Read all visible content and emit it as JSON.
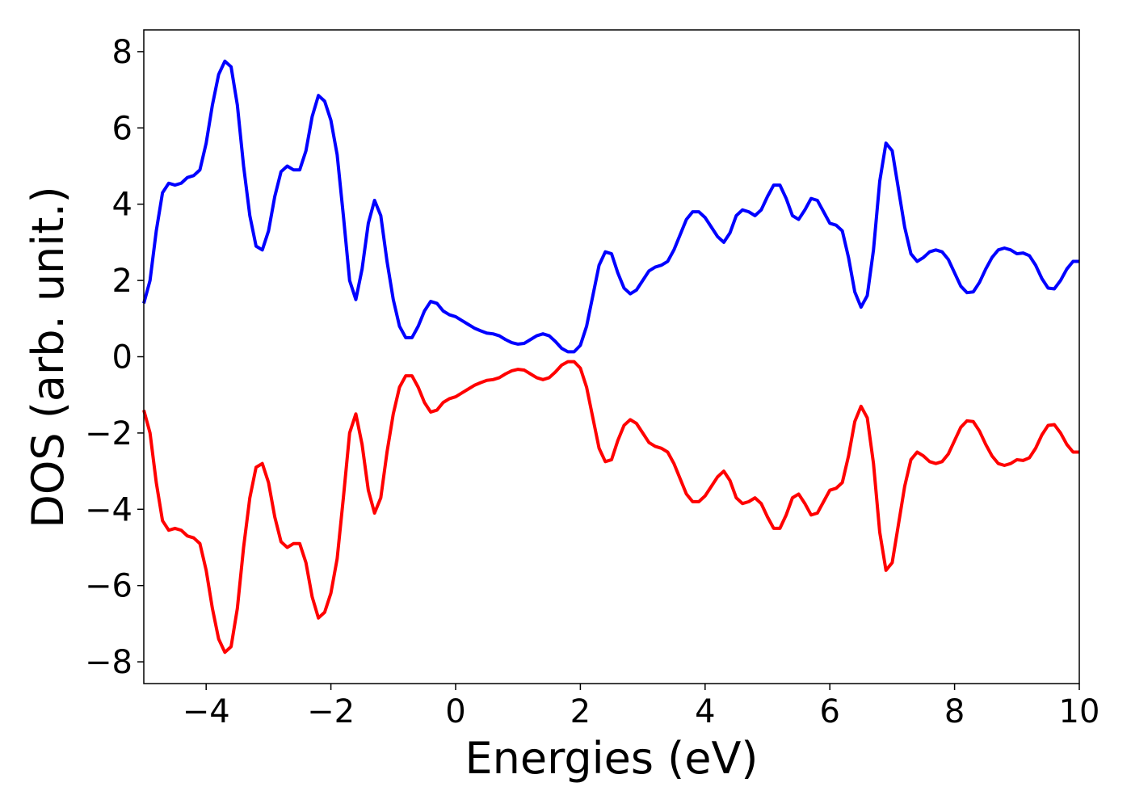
{
  "chart_data": {
    "type": "line",
    "xlabel": "Energies (eV)",
    "ylabel": "DOS (arb. unit.)",
    "xlim": [
      -5,
      10
    ],
    "xticks": [
      {
        "value": -4,
        "label": "−4"
      },
      {
        "value": -2,
        "label": "−2"
      },
      0,
      2,
      4,
      6,
      8,
      10
    ],
    "ylim": [
      -8.57,
      8.57
    ],
    "yticks": [
      {
        "value": -8,
        "label": "−8"
      },
      {
        "value": -6,
        "label": "−6"
      },
      {
        "value": -4,
        "label": "−4"
      },
      {
        "value": -2,
        "label": "−2"
      },
      0,
      2,
      4,
      6,
      8
    ],
    "x": [
      -5.0,
      -4.9,
      -4.8,
      -4.7,
      -4.6,
      -4.5,
      -4.4,
      -4.3,
      -4.2,
      -4.1,
      -4.0,
      -3.9,
      -3.8,
      -3.7,
      -3.6,
      -3.5,
      -3.4,
      -3.3,
      -3.2,
      -3.1,
      -3.0,
      -2.9,
      -2.8,
      -2.7,
      -2.6,
      -2.5,
      -2.4,
      -2.3,
      -2.2,
      -2.1,
      -2.0,
      -1.9,
      -1.8,
      -1.7,
      -1.6,
      -1.5,
      -1.4,
      -1.3,
      -1.2,
      -1.1,
      -1.0,
      -0.9,
      -0.8,
      -0.7,
      -0.6,
      -0.5,
      -0.4,
      -0.3,
      -0.2,
      -0.1,
      0.0,
      0.1,
      0.2,
      0.3,
      0.4,
      0.5,
      0.6,
      0.7,
      0.8,
      0.9,
      1.0,
      1.1,
      1.2,
      1.3,
      1.4,
      1.5,
      1.6,
      1.7,
      1.8,
      1.9,
      2.0,
      2.1,
      2.2,
      2.3,
      2.4,
      2.5,
      2.6,
      2.7,
      2.8,
      2.9,
      3.0,
      3.1,
      3.2,
      3.3,
      3.4,
      3.5,
      3.6,
      3.7,
      3.8,
      3.9,
      4.0,
      4.1,
      4.2,
      4.3,
      4.4,
      4.5,
      4.6,
      4.7,
      4.8,
      4.9,
      5.0,
      5.1,
      5.2,
      5.3,
      5.4,
      5.5,
      5.6,
      5.7,
      5.8,
      5.9,
      6.0,
      6.1,
      6.2,
      6.3,
      6.4,
      6.5,
      6.6,
      6.7,
      6.8,
      6.9,
      7.0,
      7.1,
      7.2,
      7.3,
      7.4,
      7.5,
      7.6,
      7.7,
      7.8,
      7.9,
      8.0,
      8.1,
      8.2,
      8.3,
      8.4,
      8.5,
      8.6,
      8.7,
      8.8,
      8.9,
      9.0,
      9.1,
      9.2,
      9.3,
      9.4,
      9.5,
      9.6,
      9.7,
      9.8,
      9.9,
      10.0
    ],
    "series": [
      {
        "color": "#0000ff",
        "values": [
          1.4,
          2.0,
          3.3,
          4.3,
          4.55,
          4.5,
          4.55,
          4.7,
          4.75,
          4.9,
          5.6,
          6.6,
          7.4,
          7.75,
          7.6,
          6.6,
          5.0,
          3.7,
          2.9,
          2.8,
          3.3,
          4.2,
          4.85,
          5.0,
          4.9,
          4.9,
          5.4,
          6.3,
          6.85,
          6.7,
          6.2,
          5.3,
          3.7,
          2.0,
          1.5,
          2.3,
          3.5,
          4.1,
          3.7,
          2.5,
          1.5,
          0.8,
          0.5,
          0.5,
          0.8,
          1.2,
          1.45,
          1.4,
          1.2,
          1.1,
          1.05,
          0.95,
          0.85,
          0.75,
          0.68,
          0.62,
          0.6,
          0.55,
          0.45,
          0.37,
          0.33,
          0.35,
          0.45,
          0.55,
          0.6,
          0.55,
          0.4,
          0.22,
          0.13,
          0.13,
          0.3,
          0.8,
          1.6,
          2.4,
          2.75,
          2.7,
          2.2,
          1.8,
          1.65,
          1.75,
          2.0,
          2.25,
          2.35,
          2.4,
          2.5,
          2.8,
          3.2,
          3.6,
          3.8,
          3.8,
          3.65,
          3.4,
          3.15,
          3.0,
          3.25,
          3.7,
          3.85,
          3.8,
          3.7,
          3.85,
          4.2,
          4.5,
          4.5,
          4.15,
          3.7,
          3.6,
          3.85,
          4.15,
          4.1,
          3.8,
          3.5,
          3.45,
          3.3,
          2.6,
          1.7,
          1.3,
          1.6,
          2.8,
          4.6,
          5.6,
          5.4,
          4.4,
          3.4,
          2.7,
          2.5,
          2.6,
          2.75,
          2.8,
          2.75,
          2.55,
          2.2,
          1.85,
          1.68,
          1.7,
          1.95,
          2.3,
          2.6,
          2.8,
          2.85,
          2.8,
          2.7,
          2.72,
          2.65,
          2.4,
          2.05,
          1.8,
          1.78,
          2.0,
          2.3,
          2.5,
          2.5
        ]
      },
      {
        "color": "#ff0000",
        "values": [
          -1.4,
          -2.0,
          -3.3,
          -4.3,
          -4.55,
          -4.5,
          -4.55,
          -4.7,
          -4.75,
          -4.9,
          -5.6,
          -6.6,
          -7.4,
          -7.75,
          -7.6,
          -6.6,
          -5.0,
          -3.7,
          -2.9,
          -2.8,
          -3.3,
          -4.2,
          -4.85,
          -5.0,
          -4.9,
          -4.9,
          -5.4,
          -6.3,
          -6.85,
          -6.7,
          -6.2,
          -5.3,
          -3.7,
          -2.0,
          -1.5,
          -2.3,
          -3.5,
          -4.1,
          -3.7,
          -2.5,
          -1.5,
          -0.8,
          -0.5,
          -0.5,
          -0.8,
          -1.2,
          -1.45,
          -1.4,
          -1.2,
          -1.1,
          -1.05,
          -0.95,
          -0.85,
          -0.75,
          -0.68,
          -0.62,
          -0.6,
          -0.55,
          -0.45,
          -0.37,
          -0.33,
          -0.35,
          -0.45,
          -0.55,
          -0.6,
          -0.55,
          -0.4,
          -0.22,
          -0.13,
          -0.13,
          -0.3,
          -0.8,
          -1.6,
          -2.4,
          -2.75,
          -2.7,
          -2.2,
          -1.8,
          -1.65,
          -1.75,
          -2.0,
          -2.25,
          -2.35,
          -2.4,
          -2.5,
          -2.8,
          -3.2,
          -3.6,
          -3.8,
          -3.8,
          -3.65,
          -3.4,
          -3.15,
          -3.0,
          -3.25,
          -3.7,
          -3.85,
          -3.8,
          -3.7,
          -3.85,
          -4.2,
          -4.5,
          -4.5,
          -4.15,
          -3.7,
          -3.6,
          -3.85,
          -4.15,
          -4.1,
          -3.8,
          -3.5,
          -3.45,
          -3.3,
          -2.6,
          -1.7,
          -1.3,
          -1.6,
          -2.8,
          -4.6,
          -5.6,
          -5.4,
          -4.4,
          -3.4,
          -2.7,
          -2.5,
          -2.6,
          -2.75,
          -2.8,
          -2.75,
          -2.55,
          -2.2,
          -1.85,
          -1.68,
          -1.7,
          -1.95,
          -2.3,
          -2.6,
          -2.8,
          -2.85,
          -2.8,
          -2.7,
          -2.72,
          -2.65,
          -2.4,
          -2.05,
          -1.8,
          -1.78,
          -2.0,
          -2.3,
          -2.5,
          -2.5
        ]
      }
    ]
  }
}
